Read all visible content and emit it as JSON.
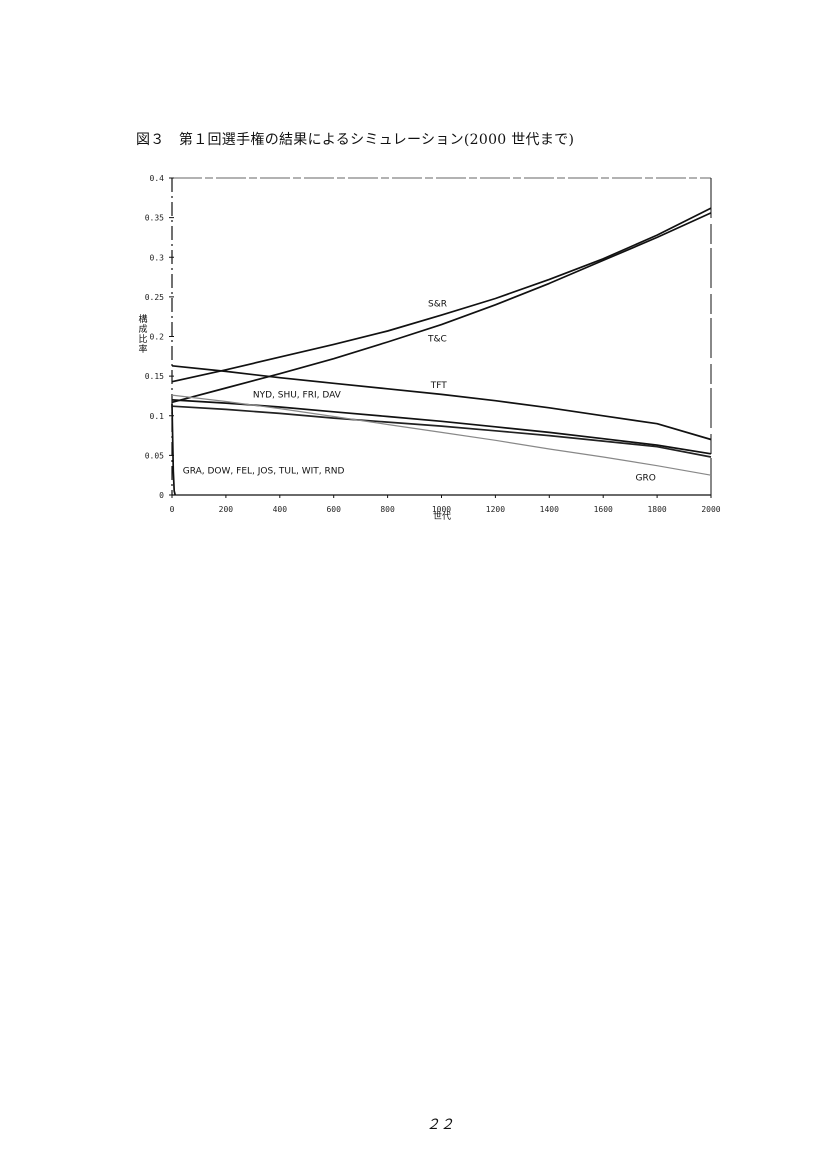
{
  "figure": {
    "title": "図３　第１回選手権の結果によるシミュレーション(2000 世代まで)"
  },
  "page_number": "２２",
  "chart_data": {
    "type": "line",
    "xlabel": "世代",
    "ylabel": "構成比率",
    "xlim": [
      0,
      2000
    ],
    "ylim": [
      0,
      0.4
    ],
    "x_ticks": [
      "0",
      "200",
      "400",
      "600",
      "800",
      "1000",
      "1200",
      "1400",
      "1600",
      "1800",
      "2000"
    ],
    "y_ticks": [
      "0",
      "0.05",
      "0.1",
      "0.15",
      "0.2",
      "0.25",
      "0.3",
      "0.35",
      "0.4"
    ],
    "grid": false,
    "series": [
      {
        "name": "S&R",
        "color": "#111111",
        "x": [
          0,
          200,
          400,
          600,
          800,
          1000,
          1200,
          1400,
          1600,
          1800,
          2000
        ],
        "y": [
          0.143,
          0.158,
          0.174,
          0.19,
          0.207,
          0.227,
          0.248,
          0.272,
          0.298,
          0.328,
          0.362
        ]
      },
      {
        "name": "T&C",
        "color": "#111111",
        "x": [
          0,
          200,
          400,
          600,
          800,
          1000,
          1200,
          1400,
          1600,
          1800,
          2000
        ],
        "y": [
          0.117,
          0.135,
          0.153,
          0.172,
          0.193,
          0.215,
          0.24,
          0.267,
          0.296,
          0.325,
          0.356
        ]
      },
      {
        "name": "TFT",
        "color": "#111111",
        "x": [
          0,
          200,
          400,
          600,
          800,
          1000,
          1200,
          1400,
          1600,
          1800,
          2000
        ],
        "y": [
          0.163,
          0.156,
          0.148,
          0.141,
          0.134,
          0.127,
          0.119,
          0.11,
          0.1,
          0.09,
          0.07
        ]
      },
      {
        "name": "NYD, SHU, FRI, DAV",
        "color": "#111111",
        "x": [
          0,
          200,
          400,
          600,
          800,
          1000,
          1200,
          1400,
          1600,
          1800,
          2000
        ],
        "y": [
          0.12,
          0.116,
          0.111,
          0.105,
          0.099,
          0.093,
          0.086,
          0.079,
          0.071,
          0.063,
          0.052
        ]
      },
      {
        "name": "",
        "color": "#222222",
        "x": [
          0,
          200,
          400,
          600,
          800,
          1000,
          1200,
          1400,
          1600,
          1800,
          2000
        ],
        "y": [
          0.112,
          0.108,
          0.103,
          0.097,
          0.092,
          0.087,
          0.081,
          0.075,
          0.068,
          0.061,
          0.048
        ]
      },
      {
        "name": "GRO",
        "color": "#888888",
        "x": [
          0,
          200,
          400,
          600,
          800,
          1000,
          1200,
          1400,
          1600,
          1800,
          2000
        ],
        "y": [
          0.126,
          0.118,
          0.109,
          0.099,
          0.089,
          0.079,
          0.069,
          0.058,
          0.048,
          0.037,
          0.025
        ]
      },
      {
        "name": "GRA, DOW, FEL, JOS, TUL, WIT, RND",
        "color": "#111111",
        "x": [
          0,
          5,
          8,
          12
        ],
        "y": [
          0.115,
          0.03,
          0.005,
          0.0
        ]
      }
    ],
    "annotations": [
      {
        "text": "S&R",
        "x": 950,
        "y": 0.238
      },
      {
        "text": "T&C",
        "x": 950,
        "y": 0.194
      },
      {
        "text": "TFT",
        "x": 960,
        "y": 0.135
      },
      {
        "text": "NYD, SHU, FRI, DAV",
        "x": 300,
        "y": 0.123
      },
      {
        "text": "GRO",
        "x": 1720,
        "y": 0.018
      },
      {
        "text": "GRA, DOW, FEL, JOS, TUL, WIT, RND",
        "x": 40,
        "y": 0.027
      }
    ]
  }
}
